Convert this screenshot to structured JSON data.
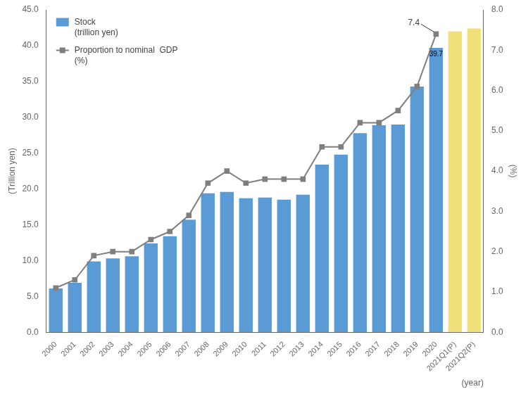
{
  "chart_data": {
    "type": "bar",
    "categories": [
      "2000",
      "2001",
      "2002",
      "2003",
      "2004",
      "2005",
      "2006",
      "2007",
      "2008",
      "2009",
      "2010",
      "2011",
      "2012",
      "2013",
      "2014",
      "2015",
      "2016",
      "2017",
      "2018",
      "2019",
      "2020",
      "2021Q1(P)",
      "2021Q2(P)"
    ],
    "series": [
      {
        "name": "Stock\n(trillion yen)",
        "type": "bar",
        "color": "#5B9BD5",
        "colors": [
          "#5B9BD5",
          "#5B9BD5",
          "#5B9BD5",
          "#5B9BD5",
          "#5B9BD5",
          "#5B9BD5",
          "#5B9BD5",
          "#5B9BD5",
          "#5B9BD5",
          "#5B9BD5",
          "#5B9BD5",
          "#5B9BD5",
          "#5B9BD5",
          "#5B9BD5",
          "#5B9BD5",
          "#5B9BD5",
          "#5B9BD5",
          "#5B9BD5",
          "#5B9BD5",
          "#5B9BD5",
          "#5B9BD5",
          "#F2E07A",
          "#F2E07A"
        ],
        "values": [
          6.1,
          6.9,
          9.9,
          10.3,
          10.6,
          12.4,
          13.4,
          15.7,
          19.4,
          19.6,
          18.7,
          18.8,
          18.5,
          19.2,
          23.4,
          24.8,
          27.8,
          28.9,
          29.0,
          34.3,
          39.7,
          42.0,
          42.4
        ]
      },
      {
        "name": "Proportion to nominal  GDP\n(%)",
        "type": "line",
        "axis": "y2",
        "color": "#7F7F7F",
        "marker": "square",
        "values": [
          1.1,
          1.3,
          1.9,
          2.0,
          2.0,
          2.3,
          2.5,
          2.9,
          3.7,
          4.0,
          3.7,
          3.8,
          3.8,
          3.8,
          4.6,
          4.6,
          5.2,
          5.2,
          5.5,
          6.1,
          7.4,
          null,
          null
        ]
      }
    ],
    "ylabel": "(Trillion yen)",
    "y2label": "(%)",
    "xlabel": "(year)",
    "ylim": [
      0,
      45.0
    ],
    "yticks": [
      {
        "value": 0,
        "label": "0.0"
      },
      {
        "value": 5,
        "label": "5.0"
      },
      {
        "value": 10,
        "label": "10.0"
      },
      {
        "value": 15,
        "label": "15.0"
      },
      {
        "value": 20,
        "label": "20.0"
      },
      {
        "value": 25,
        "label": "25.0"
      },
      {
        "value": 30,
        "label": "30.0"
      },
      {
        "value": 35,
        "label": "35.0"
      },
      {
        "value": 40,
        "label": "40.0"
      },
      {
        "value": 45,
        "label": "45.0"
      }
    ],
    "y2lim": [
      0,
      8.0
    ],
    "y2ticks": [
      {
        "value": 0,
        "label": "0.0"
      },
      {
        "value": 1,
        "label": "1.0"
      },
      {
        "value": 2,
        "label": "2.0"
      },
      {
        "value": 3,
        "label": "3.0"
      },
      {
        "value": 4,
        "label": "4.0"
      },
      {
        "value": 5,
        "label": "5.0"
      },
      {
        "value": 6,
        "label": "6.0"
      },
      {
        "value": 7,
        "label": "7.0"
      },
      {
        "value": 8,
        "label": "8.0"
      }
    ],
    "annotations": [
      {
        "text": "7.4",
        "x": "2020",
        "y": 7.4,
        "axis": "y2"
      },
      {
        "text": "39.7",
        "x": "2020",
        "y": 39.7
      }
    ],
    "grid": false,
    "legend": "upper left"
  }
}
